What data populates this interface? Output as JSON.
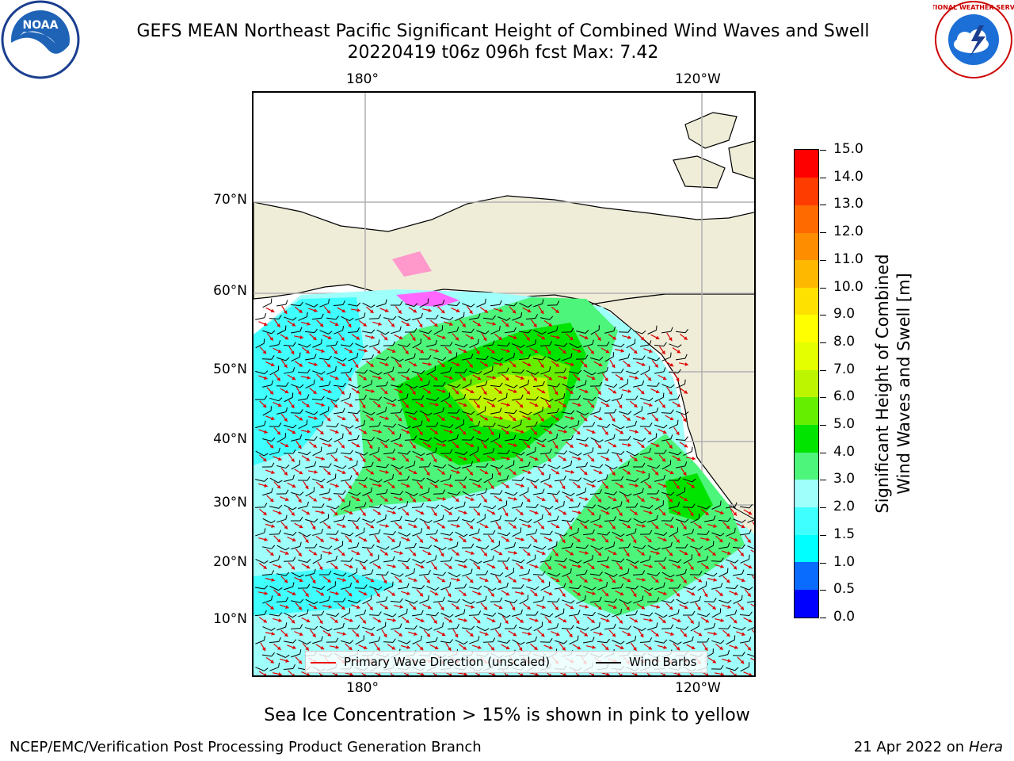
{
  "header": {
    "title_line1": "GEFS MEAN Northeast Pacific Significant Height of Combined Wind Waves and Swell",
    "title_line2": "20220419 t06z 096h fcst   Max: 7.42"
  },
  "map": {
    "lon_labels_top": [
      "180°",
      "120°W"
    ],
    "lon_labels_bottom": [
      "180°",
      "120°W"
    ],
    "lat_labels": [
      "70°N",
      "60°N",
      "50°N",
      "40°N",
      "30°N",
      "20°N",
      "10°N"
    ],
    "legend": {
      "wave_direction": "Primary Wave Direction (unscaled)",
      "wind_barbs": "Wind Barbs"
    },
    "colors": {
      "land": "#efedd8",
      "wave_arrow": "#e00000",
      "wind_barb": "#000000",
      "grid": "#b0b0b0"
    }
  },
  "colorbar": {
    "title_line1": "Significant Height of Combined",
    "title_line2": "Wind Waves and Swell [m]",
    "labels": [
      "15.0",
      "14.0",
      "13.0",
      "12.0",
      "11.0",
      "10.0",
      "9.0",
      "8.0",
      "7.0",
      "6.0",
      "5.0",
      "4.0",
      "3.0",
      "2.0",
      "1.5",
      "1.0",
      "0.5",
      "0.0"
    ],
    "colors": [
      "#0000ff",
      "#0a6cff",
      "#00ffff",
      "#40ffff",
      "#9ffffa",
      "#4df57a",
      "#00e400",
      "#66ee00",
      "#bdf500",
      "#e4ff00",
      "#ffff00",
      "#ffe100",
      "#ffb800",
      "#ff8d00",
      "#ff6a00",
      "#ff3c00",
      "#ff0000"
    ]
  },
  "caption": "Sea Ice Concentration > 15% is shown in pink to yellow",
  "footer": {
    "left": "NCEP/EMC/Verification Post Processing Product Generation Branch",
    "right_date": "21 Apr 2022 on",
    "right_host": "Hera"
  },
  "logos": {
    "noaa": "NOAA",
    "nws": "NATIONAL WEATHER SERVICE"
  }
}
